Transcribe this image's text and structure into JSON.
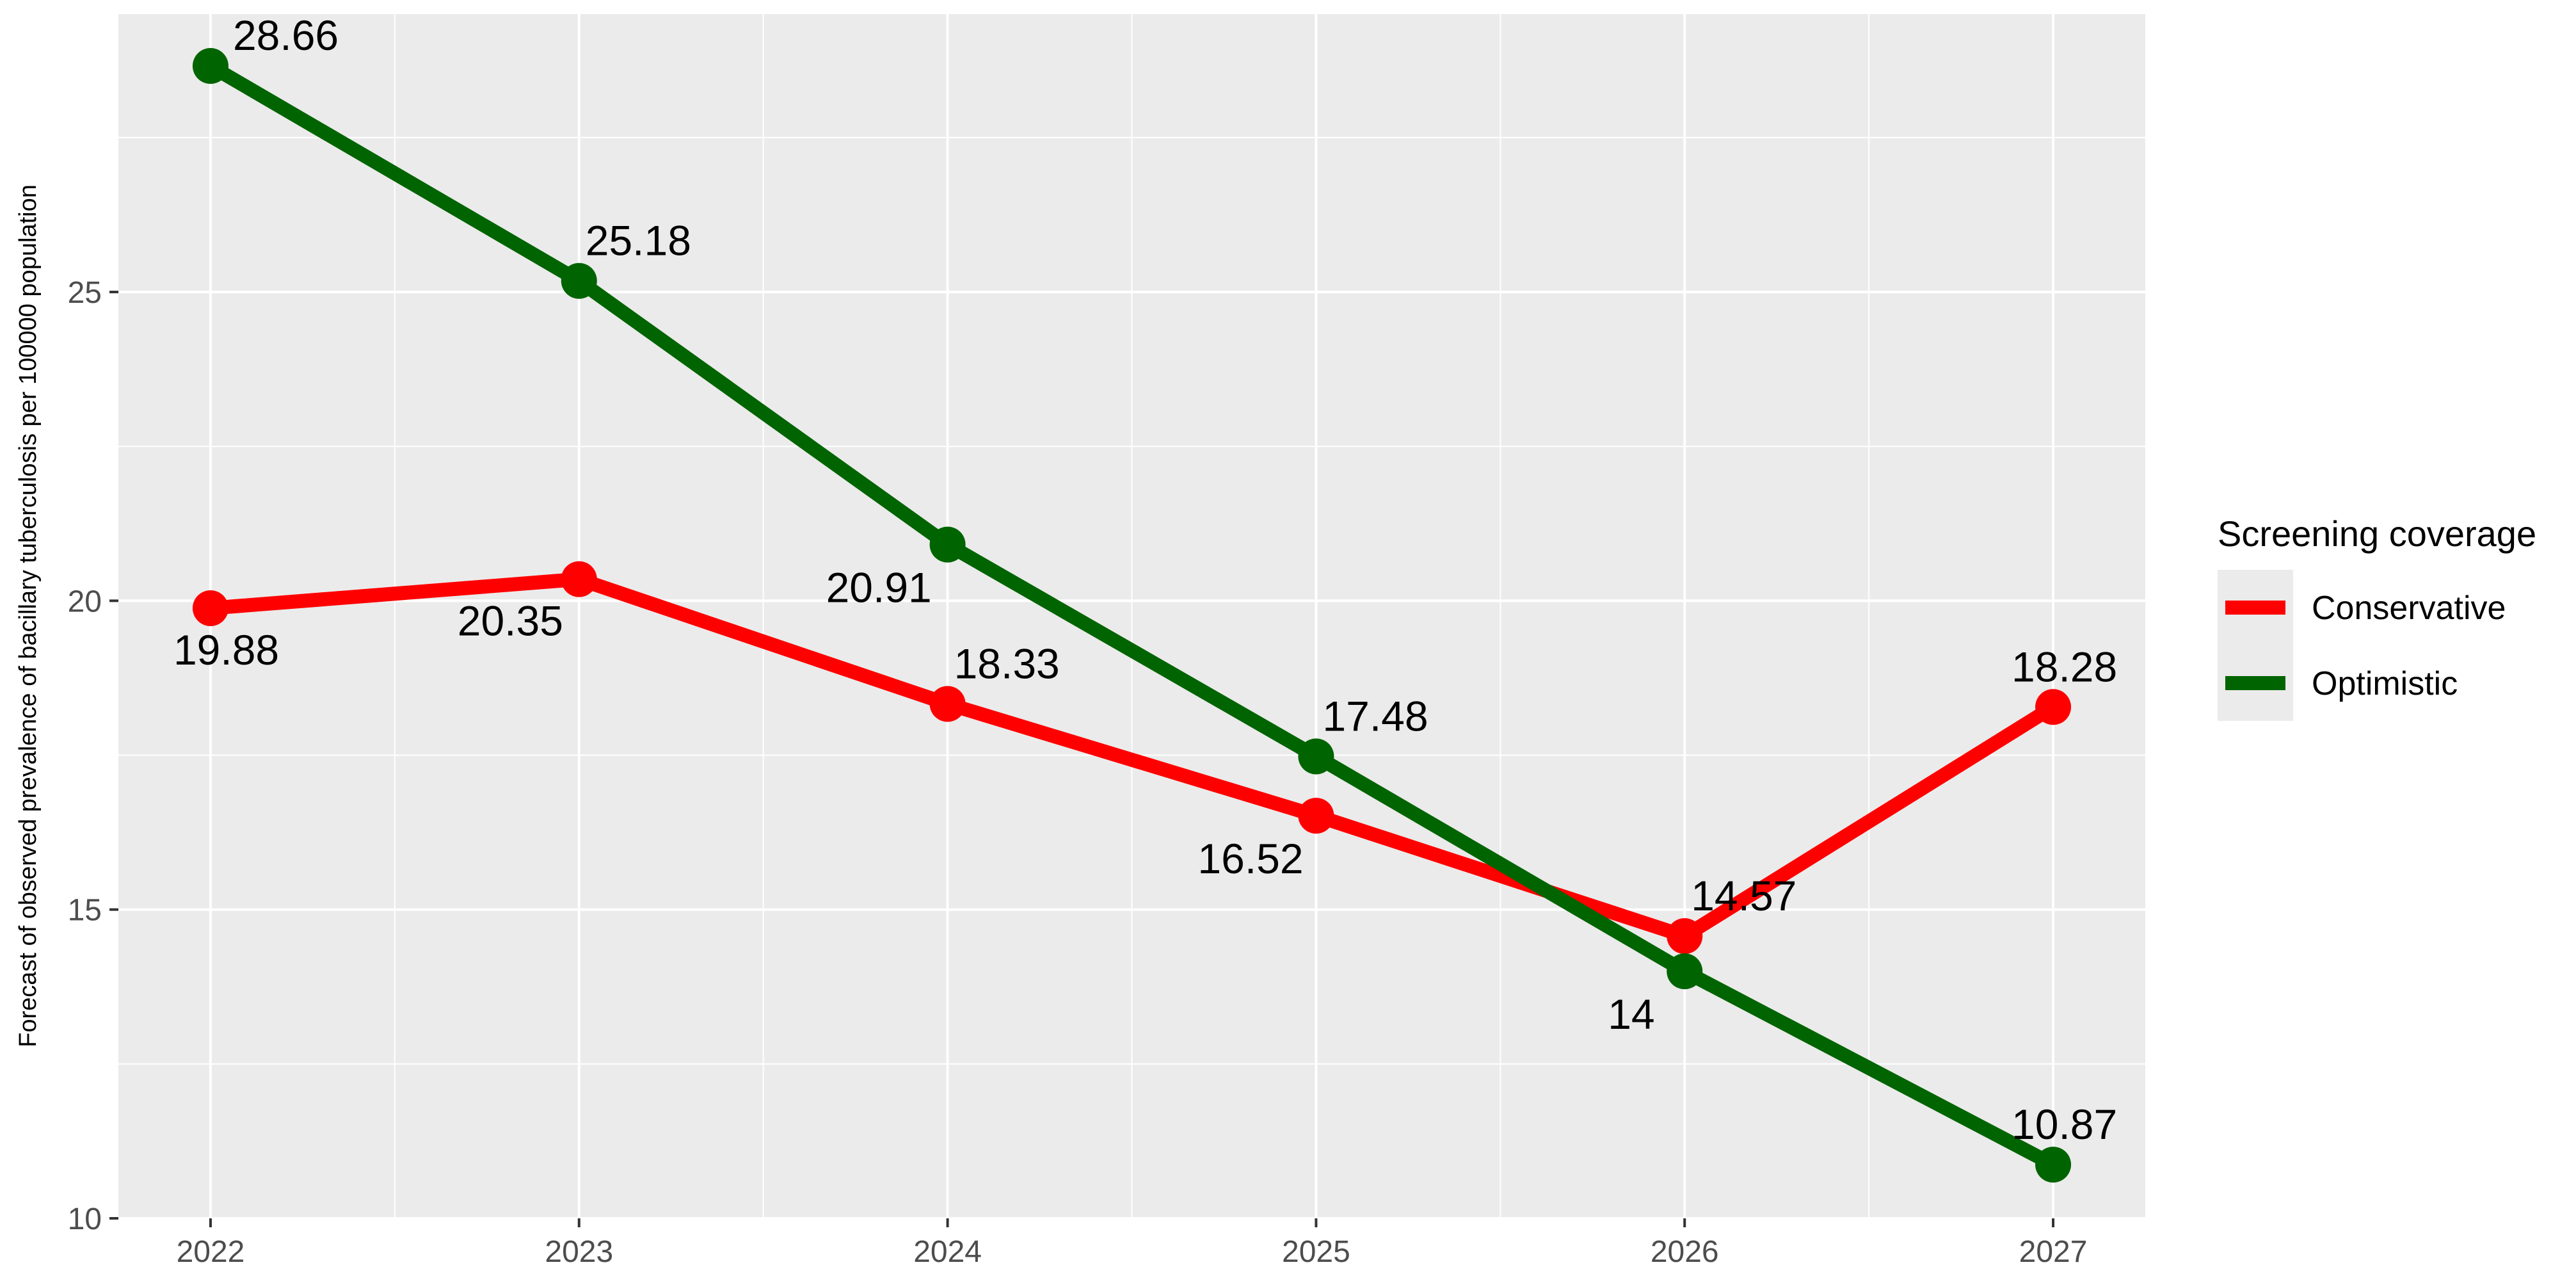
{
  "chart_data": {
    "type": "line",
    "title": "",
    "xlabel": "",
    "ylabel": "Forecast of observed prevalence of bacillary tuberculosis per 100000 population",
    "x": [
      2022,
      2023,
      2024,
      2025,
      2026,
      2027
    ],
    "x_ticks": [
      "2022",
      "2023",
      "2024",
      "2025",
      "2026",
      "2027"
    ],
    "y_ticks": [
      "10",
      "15",
      "20",
      "25"
    ],
    "xlim": [
      2021.75,
      2027.25
    ],
    "ylim": [
      10,
      29.5
    ],
    "grid": true,
    "legend": {
      "title": "Screening coverage",
      "position": "right"
    },
    "series": [
      {
        "name": "Conservative",
        "color": "#ff0000",
        "values": [
          19.88,
          20.35,
          18.33,
          16.52,
          14.57,
          18.28
        ],
        "labels": [
          "19.88",
          "20.35",
          "18.33",
          "16.52",
          "14.57",
          "18.28"
        ]
      },
      {
        "name": "Optimistic",
        "color": "#006400",
        "values": [
          28.66,
          25.18,
          20.91,
          17.48,
          14,
          10.87
        ],
        "labels": [
          "28.66",
          "25.18",
          "20.91",
          "17.48",
          "14",
          "10.87"
        ]
      }
    ]
  }
}
